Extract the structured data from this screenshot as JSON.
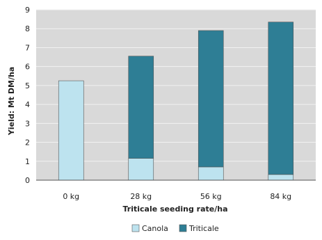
{
  "chart_data": {
    "type": "bar",
    "stacked": true,
    "categories": [
      "0 kg",
      "28 kg",
      "56 kg",
      "84 kg"
    ],
    "series": [
      {
        "name": "Canola",
        "values": [
          5.25,
          1.15,
          0.7,
          0.3
        ],
        "color": "#bde3ef"
      },
      {
        "name": "Triticale",
        "values": [
          0,
          5.4,
          7.2,
          8.05
        ],
        "color": "#2e7e95"
      }
    ],
    "xlabel": "Triticale seeding rate/ha",
    "ylabel": "Yield: Mt DM/ha",
    "ylim": [
      0,
      9
    ],
    "yticks": [
      "0",
      "1",
      "2",
      "3",
      "4",
      "5",
      "6",
      "7",
      "8",
      "9"
    ],
    "grid": true,
    "plot_background": "#d9d9d9",
    "legend_position": "bottom"
  }
}
